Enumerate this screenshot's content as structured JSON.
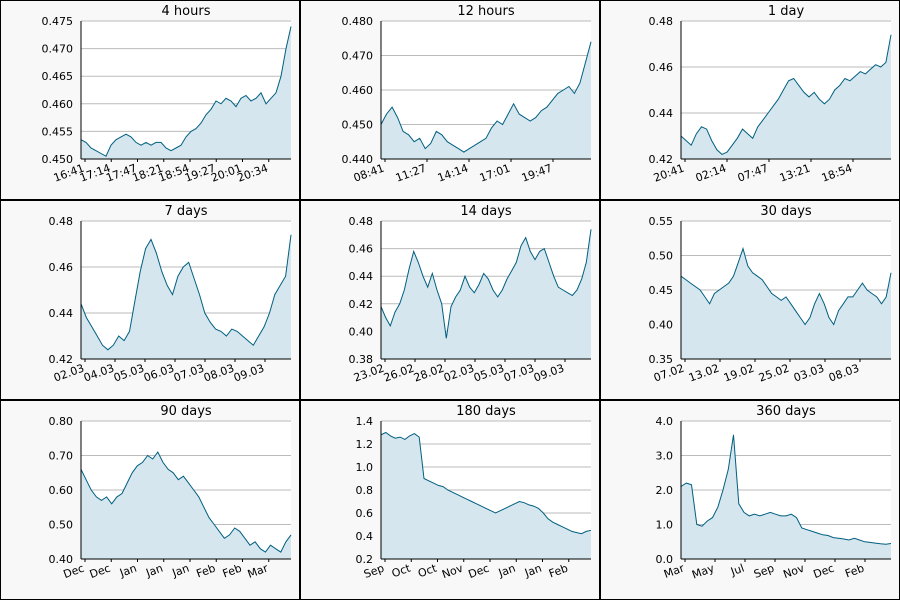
{
  "colors": {
    "line": "#005f80",
    "fill": "#d5e6ee",
    "grid": "#bbbbbb",
    "panel_bg": "#f8f8f8",
    "plot_bg": "#ffffff",
    "text": "#000000"
  },
  "chart_data": [
    {
      "type": "area",
      "title": "4 hours",
      "ylim": [
        0.45,
        0.475
      ],
      "yticks": [
        "0.450",
        "0.455",
        "0.460",
        "0.465",
        "0.470",
        "0.475"
      ],
      "xticks": [
        "16:41",
        "17:14",
        "17:47",
        "18:21",
        "18:54",
        "19:27",
        "20:01",
        "20:34"
      ],
      "grid": true,
      "series": [
        {
          "values": [
            0.4535,
            0.453,
            0.452,
            0.4515,
            0.451,
            0.4505,
            0.4525,
            0.4535,
            0.454,
            0.4545,
            0.454,
            0.453,
            0.4525,
            0.453,
            0.4525,
            0.453,
            0.453,
            0.452,
            0.4515,
            0.452,
            0.4525,
            0.454,
            0.455,
            0.4555,
            0.4565,
            0.458,
            0.459,
            0.4605,
            0.46,
            0.461,
            0.4605,
            0.4595,
            0.461,
            0.4615,
            0.4605,
            0.461,
            0.462,
            0.46,
            0.461,
            0.462,
            0.465,
            0.47,
            0.474
          ]
        }
      ]
    },
    {
      "type": "area",
      "title": "12 hours",
      "ylim": [
        0.44,
        0.48
      ],
      "yticks": [
        "0.440",
        "0.450",
        "0.460",
        "0.470",
        "0.480"
      ],
      "xticks": [
        "08:41",
        "11:27",
        "14:14",
        "17:01",
        "19:47"
      ],
      "grid": true,
      "series": [
        {
          "values": [
            0.45,
            0.453,
            0.455,
            0.452,
            0.448,
            0.447,
            0.445,
            0.446,
            0.443,
            0.4445,
            0.448,
            0.447,
            0.445,
            0.444,
            0.443,
            0.442,
            0.443,
            0.444,
            0.445,
            0.446,
            0.449,
            0.451,
            0.45,
            0.453,
            0.456,
            0.453,
            0.452,
            0.451,
            0.452,
            0.454,
            0.455,
            0.457,
            0.459,
            0.46,
            0.461,
            0.459,
            0.462,
            0.468,
            0.474
          ]
        }
      ]
    },
    {
      "type": "area",
      "title": "1 day",
      "ylim": [
        0.42,
        0.48
      ],
      "yticks": [
        "0.42",
        "0.44",
        "0.46",
        "0.48"
      ],
      "xticks": [
        "20:41",
        "02:14",
        "07:47",
        "13:21",
        "18:54"
      ],
      "grid": true,
      "series": [
        {
          "values": [
            0.43,
            0.428,
            0.426,
            0.431,
            0.434,
            0.433,
            0.428,
            0.424,
            0.422,
            0.423,
            0.426,
            0.429,
            0.433,
            0.431,
            0.429,
            0.434,
            0.437,
            0.44,
            0.443,
            0.446,
            0.45,
            0.454,
            0.455,
            0.452,
            0.449,
            0.447,
            0.449,
            0.446,
            0.444,
            0.446,
            0.45,
            0.452,
            0.455,
            0.454,
            0.456,
            0.458,
            0.457,
            0.459,
            0.461,
            0.46,
            0.462,
            0.474
          ]
        }
      ]
    },
    {
      "type": "area",
      "title": "7 days",
      "ylim": [
        0.42,
        0.48
      ],
      "yticks": [
        "0.42",
        "0.44",
        "0.46",
        "0.48"
      ],
      "xticks": [
        "02.03",
        "04.03",
        "05.03",
        "06.03",
        "07.03",
        "08.03",
        "09.03"
      ],
      "grid": true,
      "series": [
        {
          "values": [
            0.444,
            0.438,
            0.434,
            0.43,
            0.426,
            0.424,
            0.426,
            0.43,
            0.428,
            0.432,
            0.445,
            0.458,
            0.468,
            0.472,
            0.466,
            0.458,
            0.452,
            0.448,
            0.456,
            0.46,
            0.462,
            0.455,
            0.448,
            0.44,
            0.436,
            0.433,
            0.432,
            0.43,
            0.433,
            0.432,
            0.43,
            0.428,
            0.426,
            0.43,
            0.434,
            0.44,
            0.448,
            0.452,
            0.456,
            0.474
          ]
        }
      ]
    },
    {
      "type": "area",
      "title": "14 days",
      "ylim": [
        0.38,
        0.48
      ],
      "yticks": [
        "0.38",
        "0.40",
        "0.42",
        "0.44",
        "0.46",
        "0.48"
      ],
      "xticks": [
        "23.02",
        "26.02",
        "28.02",
        "02.03",
        "05.03",
        "07.03",
        "09.03"
      ],
      "grid": true,
      "series": [
        {
          "values": [
            0.418,
            0.41,
            0.404,
            0.414,
            0.42,
            0.43,
            0.445,
            0.458,
            0.45,
            0.44,
            0.432,
            0.442,
            0.43,
            0.42,
            0.395,
            0.418,
            0.425,
            0.43,
            0.44,
            0.432,
            0.428,
            0.434,
            0.442,
            0.438,
            0.43,
            0.425,
            0.43,
            0.438,
            0.444,
            0.45,
            0.462,
            0.468,
            0.458,
            0.452,
            0.458,
            0.46,
            0.45,
            0.44,
            0.432,
            0.43,
            0.428,
            0.426,
            0.43,
            0.438,
            0.45,
            0.474
          ]
        }
      ]
    },
    {
      "type": "area",
      "title": "30 days",
      "ylim": [
        0.35,
        0.55
      ],
      "yticks": [
        "0.35",
        "0.40",
        "0.45",
        "0.50",
        "0.55"
      ],
      "xticks": [
        "07.02",
        "13.02",
        "19.02",
        "25.02",
        "03.03",
        "08.03"
      ],
      "grid": true,
      "series": [
        {
          "values": [
            0.47,
            0.465,
            0.46,
            0.455,
            0.45,
            0.44,
            0.43,
            0.445,
            0.45,
            0.455,
            0.46,
            0.47,
            0.49,
            0.51,
            0.485,
            0.475,
            0.47,
            0.465,
            0.455,
            0.445,
            0.44,
            0.435,
            0.44,
            0.43,
            0.42,
            0.41,
            0.4,
            0.41,
            0.43,
            0.445,
            0.43,
            0.41,
            0.4,
            0.42,
            0.43,
            0.44,
            0.44,
            0.45,
            0.46,
            0.45,
            0.445,
            0.44,
            0.43,
            0.44,
            0.475
          ]
        }
      ]
    },
    {
      "type": "area",
      "title": "90 days",
      "ylim": [
        0.4,
        0.8
      ],
      "yticks": [
        "0.40",
        "0.50",
        "0.60",
        "0.70",
        "0.80"
      ],
      "xticks": [
        "Dec",
        "Dec",
        "Jan",
        "Jan",
        "Jan",
        "Feb",
        "Feb",
        "Mar"
      ],
      "grid": true,
      "series": [
        {
          "values": [
            0.66,
            0.63,
            0.6,
            0.58,
            0.57,
            0.58,
            0.56,
            0.58,
            0.59,
            0.62,
            0.65,
            0.67,
            0.68,
            0.7,
            0.69,
            0.71,
            0.68,
            0.66,
            0.65,
            0.63,
            0.64,
            0.62,
            0.6,
            0.58,
            0.55,
            0.52,
            0.5,
            0.48,
            0.46,
            0.47,
            0.49,
            0.48,
            0.46,
            0.44,
            0.45,
            0.43,
            0.42,
            0.44,
            0.43,
            0.42,
            0.45,
            0.47
          ]
        }
      ]
    },
    {
      "type": "area",
      "title": "180 days",
      "ylim": [
        0.2,
        1.4
      ],
      "yticks": [
        "0.2",
        "0.4",
        "0.6",
        "0.8",
        "1.0",
        "1.2",
        "1.4"
      ],
      "xticks": [
        "Sep",
        "Oct",
        "Oct",
        "Nov",
        "Dec",
        "Jan",
        "Jan",
        "Feb"
      ],
      "grid": true,
      "series": [
        {
          "values": [
            1.28,
            1.3,
            1.27,
            1.25,
            1.26,
            1.24,
            1.27,
            1.29,
            1.26,
            0.9,
            0.88,
            0.86,
            0.84,
            0.83,
            0.8,
            0.78,
            0.76,
            0.74,
            0.72,
            0.7,
            0.68,
            0.66,
            0.64,
            0.62,
            0.6,
            0.62,
            0.64,
            0.66,
            0.68,
            0.7,
            0.69,
            0.67,
            0.66,
            0.64,
            0.6,
            0.55,
            0.52,
            0.5,
            0.48,
            0.46,
            0.44,
            0.43,
            0.42,
            0.44,
            0.45
          ]
        }
      ]
    },
    {
      "type": "area",
      "title": "360 days",
      "ylim": [
        0.0,
        4.0
      ],
      "yticks": [
        "0.0",
        "1.0",
        "2.0",
        "3.0",
        "4.0"
      ],
      "xticks": [
        "Mar",
        "May",
        "Jul",
        "Sep",
        "Nov",
        "Dec",
        "Feb"
      ],
      "grid": true,
      "series": [
        {
          "values": [
            2.1,
            2.2,
            2.15,
            1.0,
            0.95,
            1.1,
            1.2,
            1.5,
            2.0,
            2.6,
            3.6,
            1.6,
            1.35,
            1.25,
            1.3,
            1.25,
            1.3,
            1.35,
            1.3,
            1.25,
            1.25,
            1.3,
            1.2,
            0.9,
            0.85,
            0.8,
            0.75,
            0.7,
            0.68,
            0.62,
            0.6,
            0.58,
            0.55,
            0.6,
            0.55,
            0.5,
            0.48,
            0.46,
            0.44,
            0.43,
            0.45
          ]
        }
      ]
    }
  ]
}
